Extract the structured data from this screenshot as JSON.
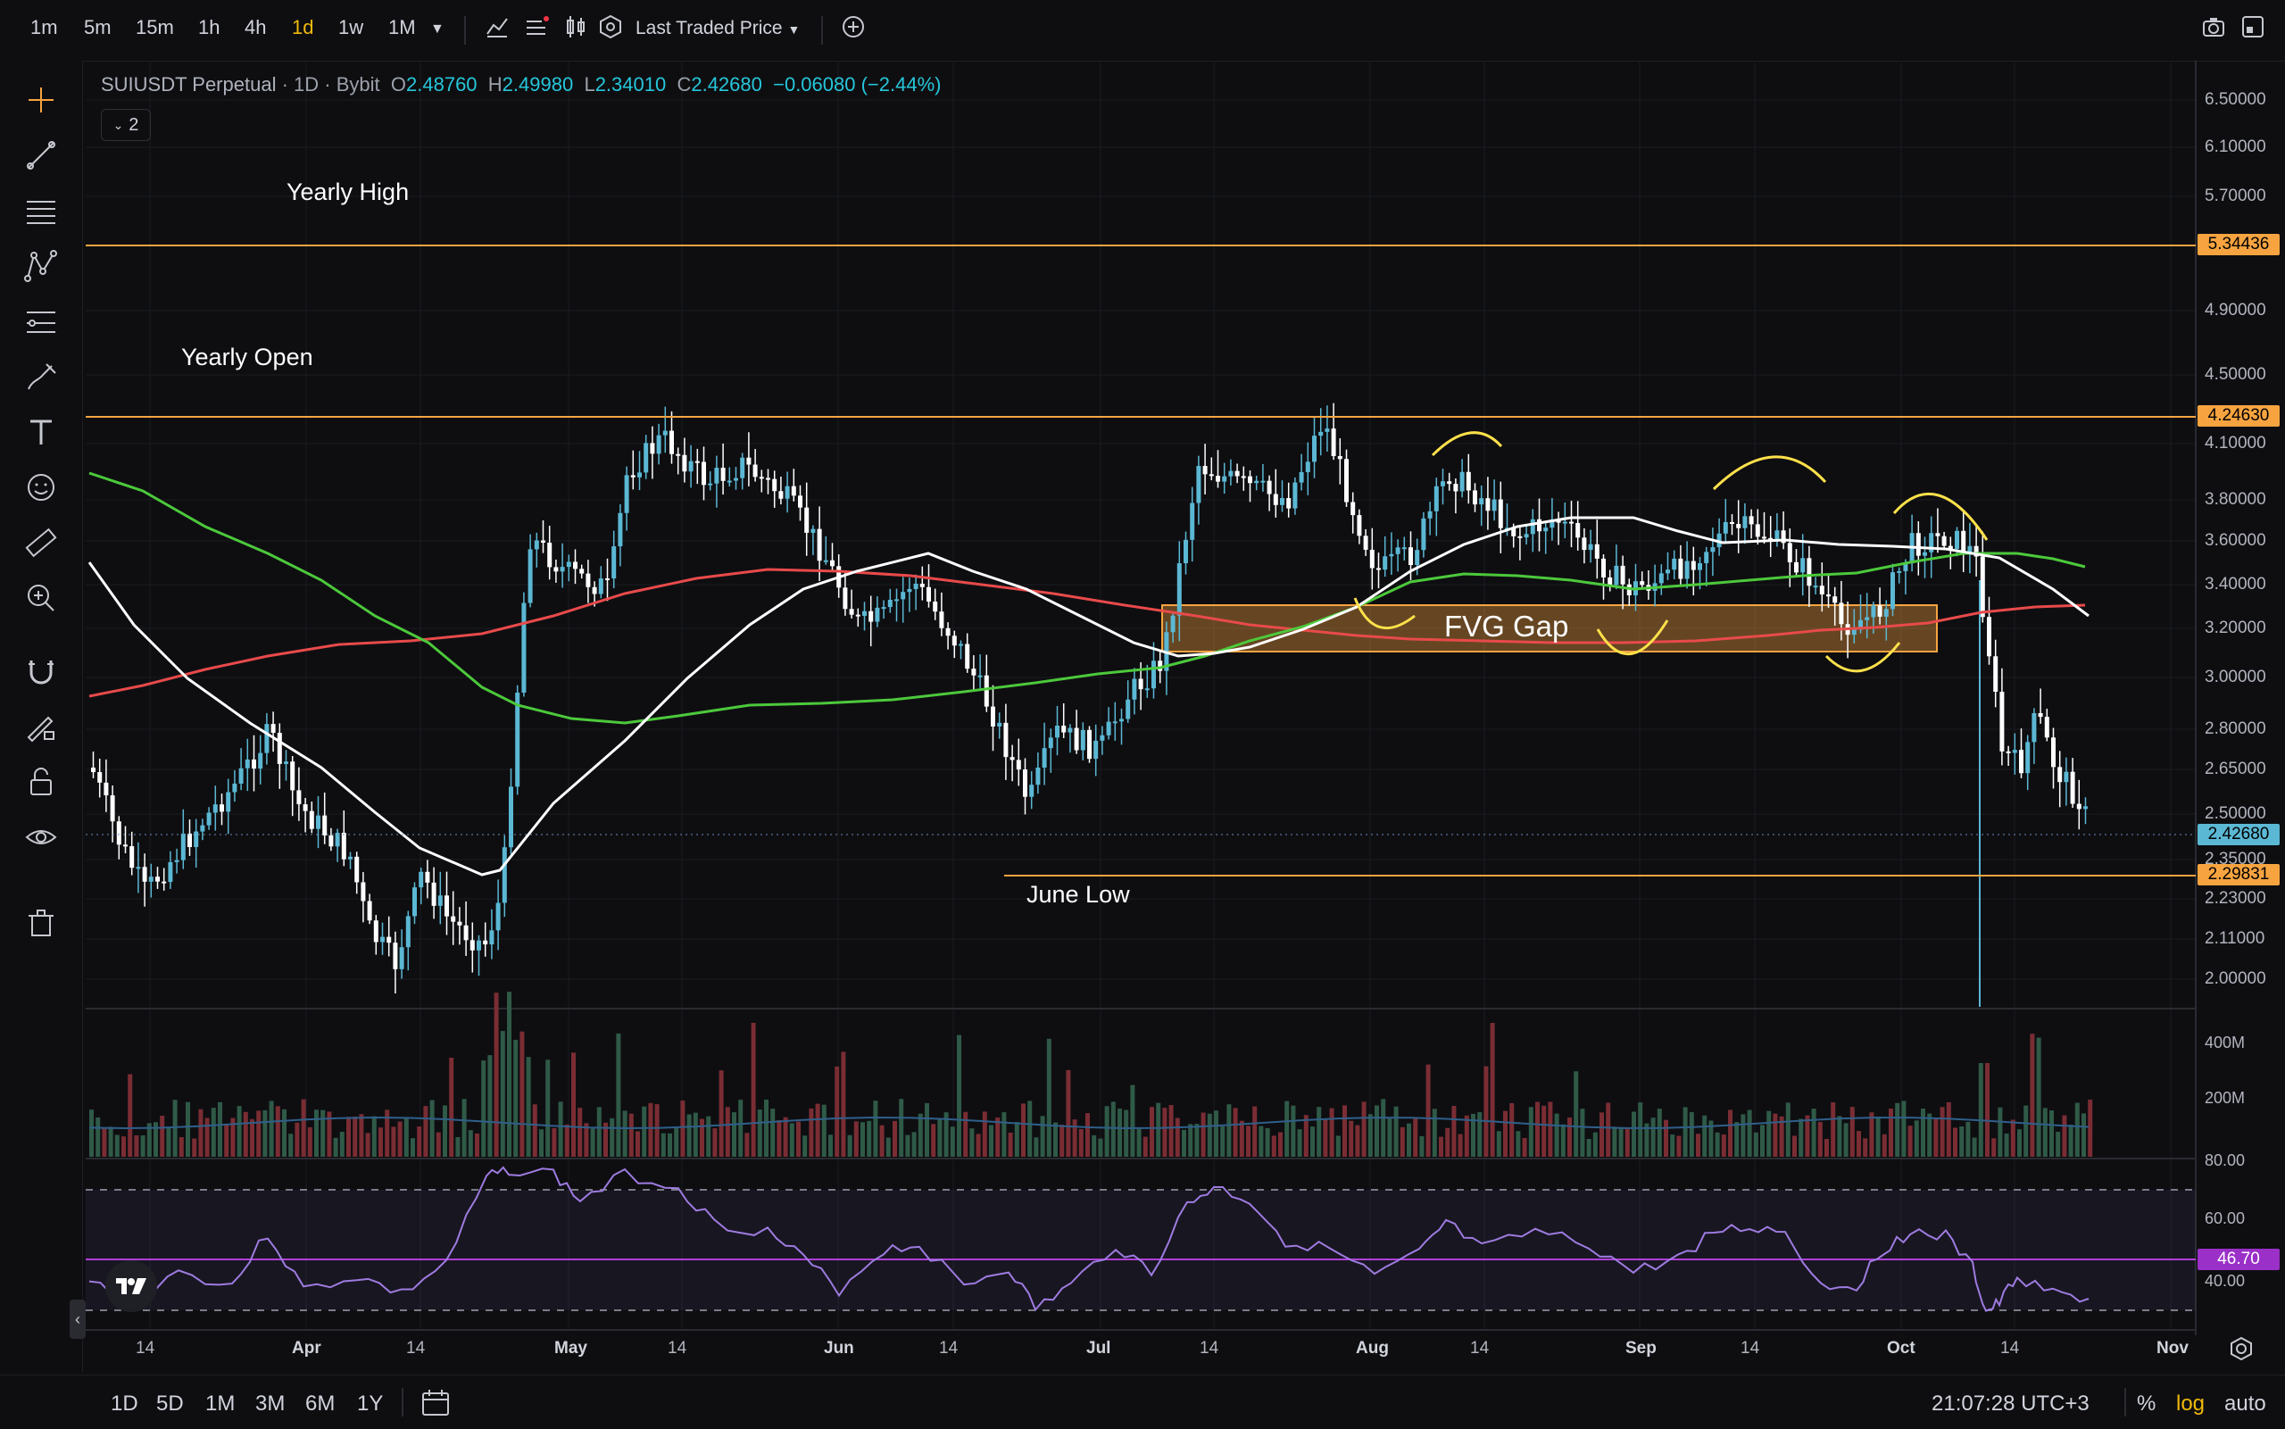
{
  "toolbar": {
    "timeframes": [
      "1m",
      "5m",
      "15m",
      "1h",
      "4h",
      "1d",
      "1w",
      "1M"
    ],
    "active_timeframe": "1d",
    "price_source_label": "Last Traded Price"
  },
  "legend": {
    "symbol": "SUIUSDT Perpetual",
    "interval": "1D",
    "exchange": "Bybit",
    "o_label": "O",
    "open": "2.48760",
    "h_label": "H",
    "high": "2.49980",
    "l_label": "L",
    "low": "2.34010",
    "c_label": "C",
    "close": "2.42680",
    "change": "−0.06080 (−2.44%)",
    "indicator_count": "2"
  },
  "annotations": {
    "yearly_high": "Yearly High",
    "yearly_open": "Yearly Open",
    "june_low": "June Low",
    "fvg_gap": "FVG Gap"
  },
  "price_axis": {
    "ticks": [
      "6.50000",
      "6.10000",
      "5.70000",
      "4.90000",
      "4.50000",
      "4.10000",
      "3.80000",
      "3.60000",
      "3.40000",
      "3.20000",
      "3.00000",
      "2.80000",
      "2.65000",
      "2.50000",
      "2.35000",
      "2.23000",
      "2.11000",
      "2.00000"
    ],
    "badges": {
      "yearly_high": "5.34436",
      "yearly_open": "4.24630",
      "last_price": "2.42680",
      "june_low": "2.29831"
    }
  },
  "volume_axis": {
    "ticks": [
      "400M",
      "200M"
    ]
  },
  "rsi_axis": {
    "ticks": [
      "80.00",
      "60.00",
      "40.00"
    ],
    "value": "46.70"
  },
  "time_axis": {
    "labels": [
      "14",
      "Apr",
      "14",
      "May",
      "14",
      "Jun",
      "14",
      "Jul",
      "14",
      "Aug",
      "14",
      "Sep",
      "14",
      "Oct",
      "14",
      "Nov"
    ]
  },
  "bottom": {
    "ranges": [
      "1D",
      "5D",
      "1M",
      "3M",
      "6M",
      "1Y"
    ],
    "clock": "21:07:28 UTC+3",
    "percent": "%",
    "log": "log",
    "auto": "auto"
  },
  "colors": {
    "up": "#26a69a",
    "up_body": "#5bb8d4",
    "down": "#ffffff",
    "orange": "#f7a440",
    "ma_white": "#ffffff",
    "ma_green": "#4cc93b",
    "ma_red": "#e84a4a",
    "rsi": "#9e7be0",
    "accent": "#f0b90b"
  }
}
